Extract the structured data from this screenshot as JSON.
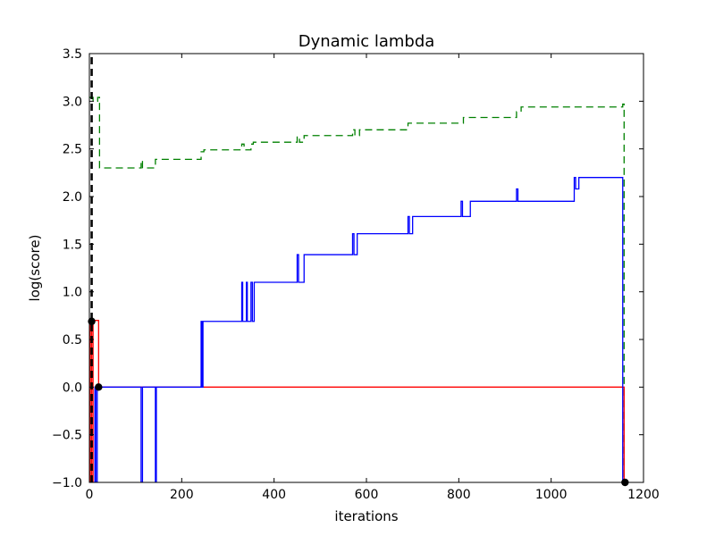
{
  "chart_data": {
    "type": "line",
    "title": "Dynamic lambda",
    "xlabel": "iterations",
    "ylabel": "log(score)",
    "xlim": [
      0,
      1200
    ],
    "ylim": [
      -1.0,
      3.5
    ],
    "xticks": [
      0,
      200,
      400,
      600,
      800,
      1000,
      1200
    ],
    "yticks": [
      -1.0,
      -0.5,
      0.0,
      0.5,
      1.0,
      1.5,
      2.0,
      2.5,
      3.0,
      3.5
    ],
    "xtick_labels": [
      "0",
      "200",
      "400",
      "600",
      "800",
      "1000",
      "1200"
    ],
    "ytick_labels": [
      "−1.0",
      "−0.5",
      "0.0",
      "0.5",
      "1.0",
      "1.5",
      "2.0",
      "2.5",
      "3.0",
      "3.5"
    ],
    "grid": false,
    "legend": "none",
    "series": [
      {
        "color": "#008000",
        "style": "dashed",
        "x": [
          0,
          8,
          8,
          18,
          18,
          22,
          22,
          112,
          112,
          115,
          115,
          143,
          143,
          145,
          145,
          242,
          242,
          248,
          248,
          330,
          330,
          335,
          335,
          350,
          350,
          355,
          355,
          450,
          450,
          455,
          455,
          465,
          465,
          570,
          570,
          575,
          575,
          585,
          585,
          690,
          690,
          810,
          810,
          925,
          925,
          935,
          935,
          1060,
          1060,
          1155,
          1155,
          1158,
          1158
        ],
        "y": [
          3.04,
          3.04,
          3.0,
          3.0,
          3.04,
          3.04,
          2.3,
          2.3,
          2.38,
          2.38,
          2.3,
          2.3,
          2.39,
          2.39,
          2.39,
          2.39,
          2.47,
          2.47,
          2.49,
          2.49,
          2.55,
          2.55,
          2.49,
          2.49,
          2.55,
          2.55,
          2.57,
          2.57,
          2.63,
          2.63,
          2.57,
          2.57,
          2.64,
          2.64,
          2.7,
          2.7,
          2.64,
          2.64,
          2.7,
          2.7,
          2.77,
          2.77,
          2.83,
          2.83,
          2.89,
          2.89,
          2.94,
          2.94,
          2.94,
          2.94,
          2.97,
          2.97,
          -1.0
        ]
      },
      {
        "color": "#ff0000",
        "style": "solid",
        "x": [
          0,
          2,
          2,
          5,
          5,
          8,
          8,
          20,
          20,
          1158,
          1158,
          1160
        ],
        "y": [
          -1.0,
          -1.0,
          0.7,
          0.7,
          -1.0,
          -1.0,
          0.7,
          0.7,
          0.0,
          0.0,
          -1.0,
          -1.0
        ]
      },
      {
        "color": "#0000ff",
        "style": "solid",
        "x": [
          0,
          12,
          12,
          14,
          14,
          17,
          17,
          20,
          20,
          112,
          112,
          115,
          115,
          143,
          143,
          145,
          145,
          242,
          242,
          244,
          244,
          246,
          246,
          248,
          248,
          330,
          330,
          332,
          332,
          340,
          340,
          342,
          342,
          350,
          350,
          353,
          353,
          357,
          357,
          360,
          360,
          450,
          450,
          453,
          453,
          465,
          465,
          468,
          468,
          570,
          570,
          573,
          573,
          580,
          580,
          583,
          583,
          690,
          690,
          693,
          693,
          700,
          700,
          805,
          805,
          808,
          808,
          825,
          825,
          925,
          925,
          928,
          928,
          1050,
          1050,
          1053,
          1053,
          1060,
          1060,
          1155,
          1155,
          1160
        ],
        "y": [
          -1.0,
          -1.0,
          0.0,
          0.0,
          -1.0,
          -1.0,
          0.0,
          0.0,
          0.0,
          0.0,
          -1.0,
          -1.0,
          0.0,
          0.0,
          -1.0,
          -1.0,
          0.0,
          0.0,
          0.69,
          0.69,
          0.0,
          0.0,
          0.69,
          0.69,
          0.69,
          0.69,
          1.1,
          1.1,
          0.69,
          0.69,
          1.1,
          1.1,
          0.69,
          0.69,
          1.1,
          1.1,
          0.69,
          0.69,
          1.1,
          1.1,
          1.1,
          1.1,
          1.39,
          1.39,
          1.1,
          1.1,
          1.39,
          1.39,
          1.39,
          1.39,
          1.61,
          1.61,
          1.39,
          1.39,
          1.61,
          1.61,
          1.61,
          1.61,
          1.79,
          1.79,
          1.61,
          1.61,
          1.79,
          1.79,
          1.95,
          1.95,
          1.79,
          1.79,
          1.95,
          1.95,
          2.08,
          2.08,
          1.95,
          1.95,
          2.2,
          2.2,
          2.08,
          2.08,
          2.2,
          2.2,
          -1.0,
          -1.0
        ]
      },
      {
        "color": "#000000",
        "style": "dashed-thick",
        "x": [
          5,
          5
        ],
        "y": [
          -1.0,
          3.5
        ]
      }
    ],
    "markers": [
      {
        "x": 5,
        "y": 0.69
      },
      {
        "x": 20,
        "y": 0.0
      },
      {
        "x": 1160,
        "y": -1.0
      }
    ]
  }
}
